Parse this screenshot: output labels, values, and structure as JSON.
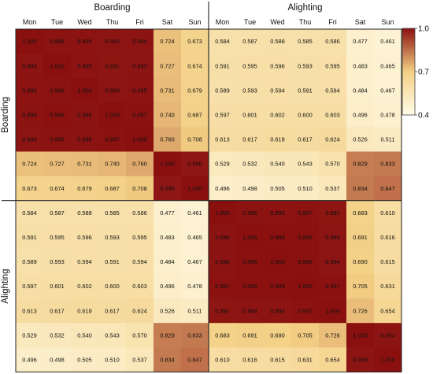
{
  "chart_data": {
    "type": "heatmap",
    "title": "",
    "column_group_labels": [
      "Boarding",
      "Alighting"
    ],
    "row_group_labels": [
      "Boarding",
      "Alighting"
    ],
    "day_labels": [
      "Mon",
      "Tue",
      "Wed",
      "Thu",
      "Fri",
      "Sat",
      "Sun"
    ],
    "colorbar": {
      "range": [
        0.4,
        1.0
      ],
      "ticks": [
        "1.0",
        "0.7",
        "0.4"
      ]
    },
    "decimals": 3,
    "matrix": [
      [
        1.0,
        0.996,
        0.995,
        0.993,
        0.994,
        0.724,
        0.673,
        0.584,
        0.587,
        0.588,
        0.585,
        0.586,
        0.477,
        0.461
      ],
      [
        0.993,
        1.0,
        0.995,
        0.991,
        0.993,
        0.727,
        0.674,
        0.591,
        0.595,
        0.596,
        0.593,
        0.595,
        0.483,
        0.465
      ],
      [
        0.995,
        0.996,
        1.0,
        0.993,
        0.995,
        0.731,
        0.679,
        0.589,
        0.593,
        0.594,
        0.591,
        0.594,
        0.484,
        0.467
      ],
      [
        0.996,
        0.998,
        0.996,
        1.0,
        0.997,
        0.74,
        0.687,
        0.597,
        0.601,
        0.602,
        0.6,
        0.603,
        0.496,
        0.478
      ],
      [
        0.994,
        0.996,
        0.996,
        0.997,
        1.0,
        0.76,
        0.708,
        0.613,
        0.617,
        0.618,
        0.617,
        0.624,
        0.526,
        0.511
      ],
      [
        0.724,
        0.727,
        0.731,
        0.74,
        0.76,
        1.0,
        0.99,
        0.529,
        0.532,
        0.54,
        0.543,
        0.57,
        0.829,
        0.833
      ],
      [
        0.673,
        0.674,
        0.679,
        0.687,
        0.708,
        0.99,
        1.0,
        0.496,
        0.498,
        0.505,
        0.51,
        0.537,
        0.834,
        0.847
      ],
      [
        0.584,
        0.587,
        0.588,
        0.585,
        0.586,
        0.477,
        0.461,
        1.0,
        0.996,
        0.995,
        0.997,
        0.991,
        0.683,
        0.61
      ],
      [
        0.591,
        0.595,
        0.596,
        0.593,
        0.595,
        0.483,
        0.465,
        0.996,
        1.0,
        0.999,
        0.999,
        0.994,
        0.691,
        0.616
      ],
      [
        0.589,
        0.593,
        0.594,
        0.591,
        0.594,
        0.484,
        0.467,
        0.996,
        0.999,
        1.0,
        0.999,
        0.994,
        0.69,
        0.615
      ],
      [
        0.597,
        0.601,
        0.602,
        0.6,
        0.603,
        0.496,
        0.478,
        0.997,
        0.999,
        0.999,
        1.0,
        0.997,
        0.705,
        0.631
      ],
      [
        0.613,
        0.617,
        0.618,
        0.617,
        0.624,
        0.526,
        0.511,
        0.991,
        0.994,
        0.994,
        0.997,
        1.0,
        0.726,
        0.654
      ],
      [
        0.529,
        0.532,
        0.54,
        0.543,
        0.57,
        0.829,
        0.833,
        0.683,
        0.691,
        0.69,
        0.705,
        0.726,
        1.0,
        0.993
      ],
      [
        0.496,
        0.498,
        0.505,
        0.51,
        0.537,
        0.834,
        0.847,
        0.61,
        0.616,
        0.615,
        0.631,
        0.654,
        0.993,
        1.0
      ]
    ],
    "grid": false,
    "legend": "colorbar right"
  },
  "colors": {
    "low": "#fffce8",
    "mid": "#f3cf84",
    "high": "#8a1010",
    "text": "#111111",
    "separator": "#222222"
  }
}
